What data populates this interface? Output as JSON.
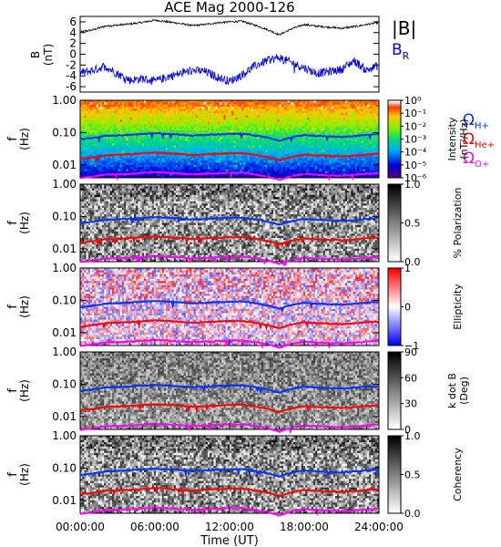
{
  "title": "ACE Mag 2000-126",
  "xlabel": "Time (UT)",
  "x_ticks": [
    "00:00:00",
    "06:00:00",
    "12:00:00",
    "18:00:00",
    "24:00:00"
  ],
  "freq_ticks": [
    "1.00",
    "0.10",
    "0.01"
  ],
  "freq_ylabel_top": "f",
  "freq_ylabel_bottom": "(Hz)",
  "colors": {
    "B": "#000000",
    "BR": "#0000dd",
    "omega_H": "#0033ff",
    "omega_He": "#ff0000",
    "omega_O": "#ff00ff"
  },
  "legend": {
    "B": "|B|",
    "BR_main": "B",
    "BR_sub": "R",
    "omega": "Ω",
    "H_sub": "H+",
    "He_sub": "He+",
    "O_sub": "O+"
  },
  "chart_data": [
    {
      "type": "line",
      "panel": "magnetic field",
      "ylabel_top": "B",
      "ylabel_bottom": "(nT)",
      "ylim": [
        -7,
        7
      ],
      "y_ticks": [
        "6",
        "4",
        "2",
        "0",
        "-2",
        "-4",
        "-6"
      ],
      "xlim_hours": [
        0,
        24
      ],
      "series": [
        {
          "name": "|B|",
          "x_hours": [
            0,
            1,
            2,
            3,
            4,
            5,
            6,
            7,
            8,
            9,
            10,
            11,
            12,
            13,
            14,
            15,
            16,
            17,
            18,
            19,
            20,
            21,
            22,
            23,
            24
          ],
          "values": [
            4.1,
            4.5,
            5.2,
            5.4,
            5.6,
            5.9,
            6.3,
            6.0,
            5.7,
            5.3,
            5.5,
            5.8,
            6.0,
            6.1,
            5.4,
            4.6,
            3.6,
            4.7,
            5.5,
            5.2,
            5.0,
            4.8,
            5.1,
            5.5,
            5.9
          ]
        },
        {
          "name": "B_R",
          "x_hours": [
            0,
            1,
            2,
            3,
            4,
            5,
            6,
            7,
            8,
            9,
            10,
            11,
            12,
            13,
            14,
            15,
            16,
            17,
            18,
            19,
            20,
            21,
            22,
            23,
            24
          ],
          "values": [
            -3.5,
            -3.0,
            -2.2,
            -3.6,
            -4.8,
            -4.5,
            -5.0,
            -4.2,
            -3.6,
            -3.0,
            -3.2,
            -4.2,
            -5.0,
            -3.8,
            -2.2,
            -1.2,
            -0.6,
            -1.6,
            -2.5,
            -3.5,
            -3.2,
            -2.8,
            -1.2,
            -3.0,
            -2.0
          ]
        }
      ]
    },
    {
      "type": "heatmap",
      "panel": "power spectral density",
      "ylim_hz": [
        0.004,
        1.0
      ],
      "colorbar_label_top": "Intensity",
      "colorbar_label_bottom": "(nT²/Hz)",
      "colorbar_ticks": [
        "10⁰",
        "10⁻¹",
        "10⁻²",
        "10⁻³",
        "10⁻⁴",
        "10⁻⁵",
        "10⁻⁶"
      ],
      "colorbar_range_log10": [
        -6.5,
        0
      ]
    },
    {
      "type": "heatmap",
      "panel": "degree of polarization",
      "ylim_hz": [
        0.004,
        1.0
      ],
      "colorbar_label": "% Polarization",
      "colorbar_ticks": [
        "1.0",
        "0.5",
        "0.0"
      ],
      "colorbar_range": [
        0,
        1
      ]
    },
    {
      "type": "heatmap",
      "panel": "ellipticity",
      "ylim_hz": [
        0.004,
        1.0
      ],
      "colorbar_label": "Ellipticity",
      "colorbar_ticks": [
        "1",
        "0",
        "−1"
      ],
      "colorbar_range": [
        -1,
        1
      ]
    },
    {
      "type": "heatmap",
      "panel": "wave normal angle",
      "ylim_hz": [
        0.004,
        1.0
      ],
      "colorbar_label_top": "k dot B",
      "colorbar_label_bottom": "(Deg)",
      "colorbar_ticks": [
        "90",
        "60",
        "30",
        "0"
      ],
      "colorbar_range": [
        0,
        90
      ]
    },
    {
      "type": "heatmap",
      "panel": "coherency",
      "ylim_hz": [
        0.004,
        1.0
      ],
      "colorbar_label": "Coherency",
      "colorbar_ticks": [
        "1.0",
        "0.5",
        "0.0"
      ],
      "colorbar_range": [
        0,
        1
      ]
    },
    {
      "type": "line",
      "panel": "ion gyrofrequencies (overlaid on all spectral panels)",
      "xlim_hours": [
        0,
        24
      ],
      "series": [
        {
          "name": "Ω H+",
          "x_hours": [
            0,
            1,
            2,
            3,
            4,
            5,
            6,
            7,
            8,
            9,
            10,
            11,
            12,
            13,
            14,
            15,
            16,
            17,
            18,
            19,
            20,
            21,
            22,
            23,
            24
          ],
          "values": [
            0.062,
            0.068,
            0.079,
            0.082,
            0.085,
            0.09,
            0.096,
            0.091,
            0.087,
            0.081,
            0.084,
            0.088,
            0.091,
            0.093,
            0.082,
            0.07,
            0.055,
            0.072,
            0.084,
            0.079,
            0.076,
            0.073,
            0.078,
            0.084,
            0.09
          ]
        },
        {
          "name": "Ω He+",
          "x_hours": [
            0,
            1,
            2,
            3,
            4,
            5,
            6,
            7,
            8,
            9,
            10,
            11,
            12,
            13,
            14,
            15,
            16,
            17,
            18,
            19,
            20,
            21,
            22,
            23,
            24
          ],
          "values": [
            0.0156,
            0.0171,
            0.0198,
            0.0206,
            0.0213,
            0.0225,
            0.024,
            0.0229,
            0.0217,
            0.0202,
            0.021,
            0.0221,
            0.0229,
            0.0232,
            0.0206,
            0.0175,
            0.0137,
            0.0179,
            0.021,
            0.0198,
            0.019,
            0.0183,
            0.0194,
            0.021,
            0.0225
          ]
        },
        {
          "name": "Ω O+",
          "x_hours": [
            0,
            1,
            2,
            3,
            4,
            5,
            6,
            7,
            8,
            9,
            10,
            11,
            12,
            13,
            14,
            15,
            16,
            17,
            18,
            19,
            20,
            21,
            22,
            23,
            24
          ],
          "values": [
            0.0039,
            0.0043,
            0.005,
            0.0051,
            0.0053,
            0.0056,
            0.006,
            0.0057,
            0.0054,
            0.0051,
            0.0053,
            0.0055,
            0.0057,
            0.0058,
            0.0051,
            0.0044,
            0.0034,
            0.0045,
            0.0053,
            0.005,
            0.0048,
            0.0046,
            0.0049,
            0.0053,
            0.0056
          ]
        }
      ]
    }
  ]
}
